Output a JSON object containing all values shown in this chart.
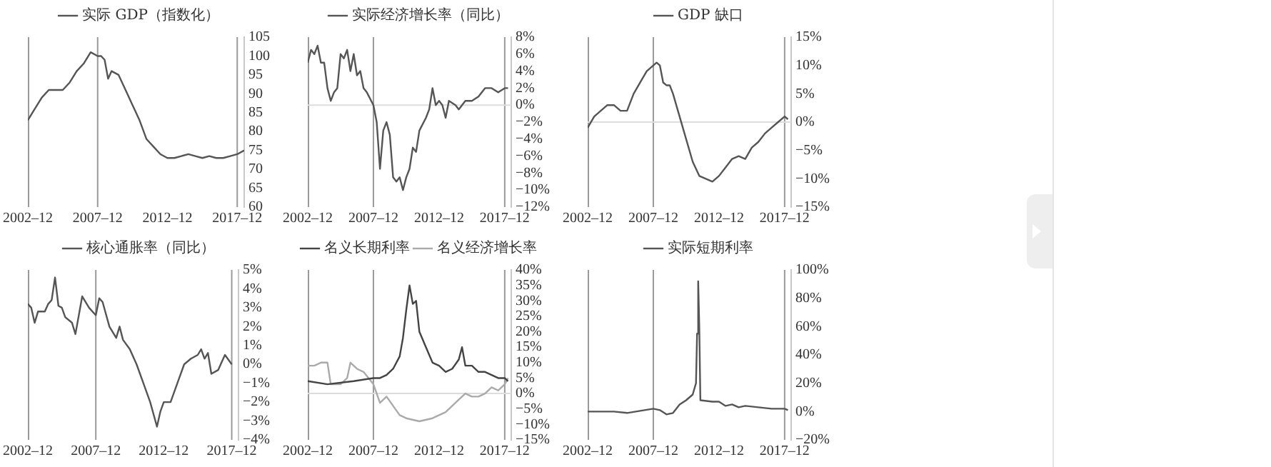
{
  "chart_data": [
    {
      "type": "line",
      "legend": "top",
      "xlim": [
        "2002-12",
        "2018-06"
      ],
      "xticks": [
        {
          "value": "2002-12",
          "label": "2002–12"
        },
        {
          "value": "2007-12",
          "label": "2007–12"
        },
        {
          "value": "2012-12",
          "label": "2012–12"
        },
        {
          "value": "2017-12",
          "label": "2017–12"
        }
      ],
      "ylim": [
        60,
        105
      ],
      "yticks": [
        60,
        65,
        70,
        75,
        80,
        85,
        90,
        95,
        100,
        105
      ],
      "ref_lines": [
        {
          "axis": "x",
          "value": "2007-12",
          "color": "#9a9a9a"
        },
        {
          "axis": "x",
          "value": "2017-12",
          "color": "#9a9a9a"
        }
      ],
      "series": [
        {
          "name": "实际 GDP（指数化）",
          "color": "#555555",
          "x": [
            "2002-12",
            "2003-06",
            "2003-12",
            "2004-06",
            "2004-12",
            "2005-06",
            "2005-12",
            "2006-06",
            "2006-12",
            "2007-06",
            "2007-12",
            "2008-03",
            "2008-06",
            "2008-09",
            "2008-12",
            "2009-06",
            "2009-12",
            "2010-06",
            "2010-12",
            "2011-06",
            "2011-12",
            "2012-06",
            "2012-12",
            "2013-06",
            "2013-12",
            "2014-06",
            "2014-12",
            "2015-06",
            "2015-12",
            "2016-06",
            "2016-12",
            "2017-06",
            "2017-12",
            "2018-06"
          ],
          "values": [
            83,
            86,
            89,
            91,
            91,
            91,
            93,
            96,
            98,
            101,
            100,
            100,
            99,
            94,
            96,
            95,
            91,
            87,
            83,
            78,
            76,
            74,
            73,
            73,
            73.5,
            74,
            73.5,
            73,
            73.5,
            73,
            73,
            73.5,
            74,
            75
          ]
        }
      ]
    },
    {
      "type": "line",
      "legend": "top",
      "xlim": [
        "2002-12",
        "2018-06"
      ],
      "xticks": [
        {
          "value": "2002-12",
          "label": "2002–12"
        },
        {
          "value": "2007-12",
          "label": "2007–12"
        },
        {
          "value": "2012-12",
          "label": "2012–12"
        },
        {
          "value": "2017-12",
          "label": "2017–12"
        }
      ],
      "ylim": [
        -12,
        8
      ],
      "yticks": [
        {
          "value": -12,
          "label": "−12%"
        },
        {
          "value": -10,
          "label": "−10%"
        },
        {
          "value": -8,
          "label": "−8%"
        },
        {
          "value": -6,
          "label": "−6%"
        },
        {
          "value": -4,
          "label": "−4%"
        },
        {
          "value": -2,
          "label": "−2%"
        },
        {
          "value": 0,
          "label": "0%"
        },
        {
          "value": 2,
          "label": "2%"
        },
        {
          "value": 4,
          "label": "4%"
        },
        {
          "value": 6,
          "label": "6%"
        },
        {
          "value": 8,
          "label": "8%"
        }
      ],
      "ref_lines": [
        {
          "axis": "x",
          "value": "2007-12",
          "color": "#9a9a9a"
        },
        {
          "axis": "x",
          "value": "2017-12",
          "color": "#9a9a9a"
        },
        {
          "axis": "y",
          "value": 0,
          "color": "#dddddd"
        }
      ],
      "series": [
        {
          "name": "实际经济增长率（同比）",
          "color": "#555555",
          "x": [
            "2002-12",
            "2003-03",
            "2003-06",
            "2003-09",
            "2003-12",
            "2004-03",
            "2004-06",
            "2004-09",
            "2004-12",
            "2005-03",
            "2005-06",
            "2005-09",
            "2005-12",
            "2006-03",
            "2006-06",
            "2006-09",
            "2006-12",
            "2007-03",
            "2007-06",
            "2007-12",
            "2008-03",
            "2008-06",
            "2008-09",
            "2008-12",
            "2009-03",
            "2009-06",
            "2009-09",
            "2009-12",
            "2010-03",
            "2010-06",
            "2010-09",
            "2010-12",
            "2011-03",
            "2011-06",
            "2011-12",
            "2012-03",
            "2012-06",
            "2012-09",
            "2012-12",
            "2013-03",
            "2013-06",
            "2013-09",
            "2014-03",
            "2014-06",
            "2014-12",
            "2015-06",
            "2015-12",
            "2016-06",
            "2016-12",
            "2017-06",
            "2017-12",
            "2018-03"
          ],
          "values": [
            5,
            6.5,
            6,
            7,
            5,
            5,
            2,
            0.5,
            1.5,
            2,
            6,
            5.5,
            6.5,
            4,
            6,
            3.5,
            4,
            2,
            1.5,
            0,
            -2,
            -7.5,
            -3,
            -2,
            -3.5,
            -8.5,
            -9,
            -8.5,
            -10,
            -8.5,
            -7.5,
            -5,
            -5.5,
            -3,
            -1.5,
            -0.5,
            2,
            0,
            0.5,
            0,
            -1.5,
            0.5,
            0,
            -0.5,
            0.5,
            0.5,
            1,
            2,
            2,
            1.5,
            2,
            2
          ]
        }
      ]
    },
    {
      "type": "line",
      "legend": "top",
      "xlim": [
        "2002-12",
        "2018-06"
      ],
      "xticks": [
        {
          "value": "2002-12",
          "label": "2002–12"
        },
        {
          "value": "2007-12",
          "label": "2007–12"
        },
        {
          "value": "2012-12",
          "label": "2012–12"
        },
        {
          "value": "2017-12",
          "label": "2017–12"
        }
      ],
      "ylim": [
        -15,
        15
      ],
      "yticks": [
        {
          "value": -15,
          "label": "−15%"
        },
        {
          "value": -10,
          "label": "−10%"
        },
        {
          "value": -5,
          "label": "−5%"
        },
        {
          "value": 0,
          "label": "0%"
        },
        {
          "value": 5,
          "label": "5%"
        },
        {
          "value": 10,
          "label": "10%"
        },
        {
          "value": 15,
          "label": "15%"
        }
      ],
      "ref_lines": [
        {
          "axis": "x",
          "value": "2007-12",
          "color": "#9a9a9a"
        },
        {
          "axis": "x",
          "value": "2017-12",
          "color": "#9a9a9a"
        },
        {
          "axis": "y",
          "value": 0,
          "color": "#dddddd"
        }
      ],
      "series": [
        {
          "name": "GDP 缺口",
          "color": "#555555",
          "x": [
            "2002-12",
            "2003-06",
            "2003-12",
            "2004-06",
            "2004-12",
            "2005-06",
            "2005-12",
            "2006-06",
            "2006-12",
            "2007-06",
            "2007-12",
            "2008-03",
            "2008-06",
            "2008-09",
            "2008-12",
            "2009-03",
            "2009-06",
            "2009-12",
            "2010-06",
            "2010-12",
            "2011-06",
            "2011-12",
            "2012-06",
            "2012-12",
            "2013-06",
            "2013-12",
            "2014-06",
            "2014-12",
            "2015-06",
            "2015-12",
            "2016-06",
            "2016-12",
            "2017-06",
            "2017-12",
            "2018-03"
          ],
          "values": [
            -1,
            1,
            2,
            3,
            3,
            2,
            2,
            5,
            7,
            9,
            10,
            10.5,
            10,
            7,
            6.5,
            6.5,
            5,
            1,
            -3,
            -7,
            -9.5,
            -10,
            -10.5,
            -9.5,
            -8,
            -6.5,
            -6,
            -6.5,
            -4.5,
            -3.5,
            -2,
            -1,
            0,
            1,
            0.5
          ]
        }
      ]
    },
    {
      "type": "line",
      "legend": "top",
      "xlim": [
        "2002-12",
        "2018-06"
      ],
      "xticks": [
        {
          "value": "2002-12",
          "label": "2002–12"
        },
        {
          "value": "2007-12",
          "label": "2007–12"
        },
        {
          "value": "2012-12",
          "label": "2012–12"
        },
        {
          "value": "2017-12",
          "label": "2017–12"
        }
      ],
      "ylim": [
        -4,
        5
      ],
      "yticks": [
        {
          "value": -4,
          "label": "−4%"
        },
        {
          "value": -3,
          "label": "−3%"
        },
        {
          "value": -2,
          "label": "−2%"
        },
        {
          "value": -1,
          "label": "−1%"
        },
        {
          "value": 0,
          "label": "0%"
        },
        {
          "value": 1,
          "label": "1%"
        },
        {
          "value": 2,
          "label": "2%"
        },
        {
          "value": 3,
          "label": "3%"
        },
        {
          "value": 4,
          "label": "4%"
        },
        {
          "value": 5,
          "label": "5%"
        }
      ],
      "ref_lines": [
        {
          "axis": "x",
          "value": "2007-12",
          "color": "#9a9a9a"
        },
        {
          "axis": "x",
          "value": "2017-12",
          "color": "#9a9a9a"
        }
      ],
      "series": [
        {
          "name": "核心通胀率（同比）",
          "color": "#555555",
          "x": [
            "2002-12",
            "2003-03",
            "2003-06",
            "2003-09",
            "2004-03",
            "2004-06",
            "2004-09",
            "2004-12",
            "2005-03",
            "2005-06",
            "2005-09",
            "2006-03",
            "2006-06",
            "2006-09",
            "2006-12",
            "2007-06",
            "2007-12",
            "2008-03",
            "2008-06",
            "2008-12",
            "2009-06",
            "2009-09",
            "2009-12",
            "2010-06",
            "2010-12",
            "2011-06",
            "2011-12",
            "2012-06",
            "2012-09",
            "2012-12",
            "2013-06",
            "2013-12",
            "2014-06",
            "2014-12",
            "2015-06",
            "2015-09",
            "2015-12",
            "2016-03",
            "2016-06",
            "2016-12",
            "2017-06",
            "2017-12"
          ],
          "values": [
            3.2,
            3,
            2.2,
            2.8,
            2.8,
            3.2,
            3.4,
            4.6,
            3.1,
            3,
            2.5,
            2.2,
            1.6,
            2.6,
            3.6,
            3,
            2.6,
            3.5,
            3.3,
            2,
            1.4,
            2,
            1.3,
            0.8,
            0,
            -1,
            -2,
            -3.3,
            -2.5,
            -2,
            -2,
            -1,
            0,
            0.3,
            0.5,
            0.8,
            0.3,
            0.6,
            -0.5,
            -0.3,
            0.5,
            0
          ]
        }
      ]
    },
    {
      "type": "line",
      "legend": "top",
      "xlim": [
        "2002-12",
        "2018-06"
      ],
      "xticks": [
        {
          "value": "2002-12",
          "label": "2002–12"
        },
        {
          "value": "2007-12",
          "label": "2007–12"
        },
        {
          "value": "2012-12",
          "label": "2012–12"
        },
        {
          "value": "2017-12",
          "label": "2017–12"
        }
      ],
      "ylim": [
        -15,
        40
      ],
      "yticks": [
        {
          "value": -15,
          "label": "−15%"
        },
        {
          "value": -10,
          "label": "−10%"
        },
        {
          "value": -5,
          "label": "−5%"
        },
        {
          "value": 0,
          "label": "0%"
        },
        {
          "value": 5,
          "label": "5%"
        },
        {
          "value": 10,
          "label": "10%"
        },
        {
          "value": 15,
          "label": "15%"
        },
        {
          "value": 20,
          "label": "20%"
        },
        {
          "value": 25,
          "label": "25%"
        },
        {
          "value": 30,
          "label": "30%"
        },
        {
          "value": 35,
          "label": "35%"
        },
        {
          "value": 40,
          "label": "40%"
        }
      ],
      "ref_lines": [
        {
          "axis": "x",
          "value": "2007-12",
          "color": "#9a9a9a"
        },
        {
          "axis": "x",
          "value": "2017-12",
          "color": "#9a9a9a"
        },
        {
          "axis": "y",
          "value": 0,
          "color": "#dddddd"
        }
      ],
      "series": [
        {
          "name": "名义长期利率",
          "color": "#444444",
          "x": [
            "2002-12",
            "2004-06",
            "2006-06",
            "2007-12",
            "2008-06",
            "2008-12",
            "2009-06",
            "2009-12",
            "2010-03",
            "2010-06",
            "2010-09",
            "2010-12",
            "2011-03",
            "2011-06",
            "2011-12",
            "2012-06",
            "2012-12",
            "2013-06",
            "2013-12",
            "2014-06",
            "2014-09",
            "2014-12",
            "2015-06",
            "2015-12",
            "2016-06",
            "2016-12",
            "2017-06",
            "2017-12",
            "2018-03"
          ],
          "values": [
            4,
            3,
            4,
            5,
            5,
            6,
            8,
            12,
            18,
            27,
            35,
            29,
            30,
            20,
            15,
            10,
            9,
            7,
            8,
            11,
            15,
            9,
            9,
            7,
            7,
            6,
            5,
            5,
            4
          ]
        },
        {
          "name": "名义经济增长率",
          "color": "#aaaaaa",
          "x": [
            "2002-12",
            "2003-06",
            "2003-12",
            "2004-06",
            "2004-09",
            "2005-06",
            "2005-12",
            "2006-03",
            "2006-09",
            "2007-03",
            "2007-12",
            "2008-06",
            "2008-12",
            "2009-06",
            "2009-12",
            "2010-06",
            "2011-06",
            "2012-06",
            "2012-12",
            "2013-06",
            "2013-12",
            "2014-06",
            "2014-12",
            "2015-06",
            "2015-12",
            "2016-06",
            "2016-12",
            "2017-06",
            "2017-12",
            "2018-03"
          ],
          "values": [
            9,
            9,
            10,
            10,
            3,
            3,
            5,
            10,
            8,
            7,
            3,
            -3,
            -1,
            -4,
            -7,
            -8,
            -9,
            -8,
            -7,
            -6,
            -4,
            -2,
            0,
            -1,
            -1,
            0,
            2,
            1,
            3,
            5
          ]
        }
      ]
    },
    {
      "type": "line",
      "legend": "top",
      "xlim": [
        "2002-12",
        "2018-06"
      ],
      "xticks": [
        {
          "value": "2002-12",
          "label": "2002–12"
        },
        {
          "value": "2007-12",
          "label": "2007–12"
        },
        {
          "value": "2012-12",
          "label": "2012–12"
        },
        {
          "value": "2017-12",
          "label": "2017–12"
        }
      ],
      "ylim": [
        -20,
        100
      ],
      "yticks": [
        {
          "value": -20,
          "label": "−20%"
        },
        {
          "value": 0,
          "label": "0%"
        },
        {
          "value": 20,
          "label": "20%"
        },
        {
          "value": 40,
          "label": "40%"
        },
        {
          "value": 60,
          "label": "60%"
        },
        {
          "value": 80,
          "label": "80%"
        },
        {
          "value": 100,
          "label": "100%"
        }
      ],
      "ref_lines": [
        {
          "axis": "x",
          "value": "2007-12",
          "color": "#9a9a9a"
        },
        {
          "axis": "x",
          "value": "2017-12",
          "color": "#9a9a9a"
        }
      ],
      "series": [
        {
          "name": "实际短期利率",
          "color": "#555555",
          "x": [
            "2002-12",
            "2004-12",
            "2005-12",
            "2007-12",
            "2008-06",
            "2008-12",
            "2009-06",
            "2009-12",
            "2010-06",
            "2010-12",
            "2011-03",
            "2011-04",
            "2011-05",
            "2011-06",
            "2011-07",
            "2012-06",
            "2012-12",
            "2013-06",
            "2013-12",
            "2014-06",
            "2014-12",
            "2015-12",
            "2016-12",
            "2017-12",
            "2018-03"
          ],
          "values": [
            0,
            0,
            -1,
            2,
            1,
            -2,
            -1,
            5,
            8,
            12,
            20,
            55,
            92,
            60,
            8,
            7,
            7,
            4,
            5,
            3,
            4,
            3,
            2,
            2,
            1
          ]
        }
      ]
    }
  ]
}
